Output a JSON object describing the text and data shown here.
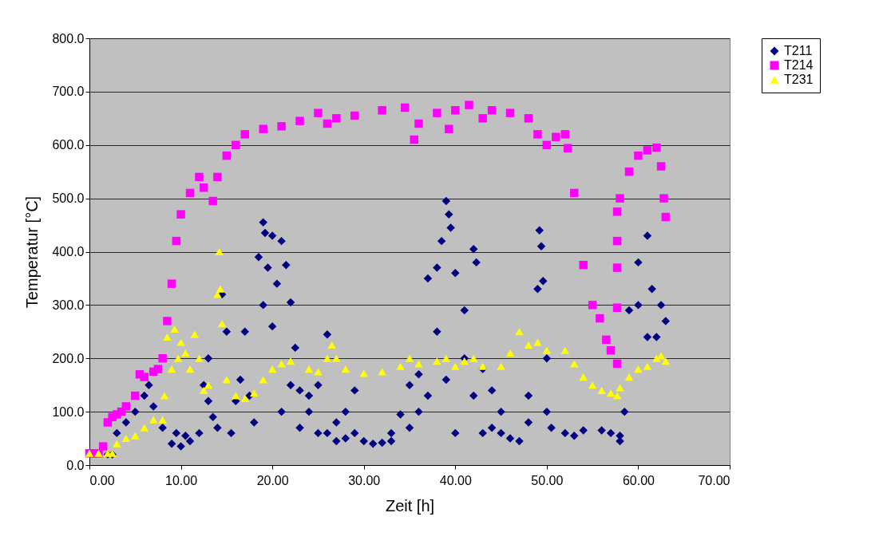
{
  "chart_data": {
    "type": "scatter",
    "xlabel": "Zeit [h]",
    "ylabel": "Temperatur [°C]",
    "xlim": [
      0,
      70
    ],
    "xticks": [
      {
        "value": 0,
        "label": "0.00"
      },
      {
        "value": 10,
        "label": "10.00"
      },
      {
        "value": 20,
        "label": "20.00"
      },
      {
        "value": 30,
        "label": "30.00"
      },
      {
        "value": 40,
        "label": "40.00"
      },
      {
        "value": 50,
        "label": "50.00"
      },
      {
        "value": 60,
        "label": "60.00"
      },
      {
        "value": 70,
        "label": "70.00"
      }
    ],
    "ylim": [
      0,
      800
    ],
    "yticks": [
      {
        "value": 0,
        "label": "0.0"
      },
      {
        "value": 100,
        "label": "100.0"
      },
      {
        "value": 200,
        "label": "200.0"
      },
      {
        "value": 300,
        "label": "300.0"
      },
      {
        "value": 400,
        "label": "400.0"
      },
      {
        "value": 500,
        "label": "500.0"
      },
      {
        "value": 600,
        "label": "600.0"
      },
      {
        "value": 700,
        "label": "700.0"
      },
      {
        "value": 800,
        "label": "800.0"
      }
    ],
    "grid": "y",
    "legend": "right",
    "series": [
      {
        "name": "T211",
        "color": "#000080",
        "marker": "diamond",
        "x": [
          2,
          2.5,
          3,
          4,
          5,
          6,
          6.5,
          7,
          8,
          9,
          9.5,
          10,
          10.5,
          11,
          12,
          12.5,
          13,
          13,
          13.5,
          14,
          14.5,
          15,
          15.5,
          16,
          16.5,
          17,
          17.5,
          18,
          18.5,
          19,
          19,
          19.2,
          19.5,
          20,
          20,
          20.5,
          21,
          21,
          21.5,
          22,
          22,
          22.5,
          23,
          23,
          24,
          24,
          25,
          25,
          26,
          26,
          27,
          27,
          28,
          28,
          29,
          29,
          30,
          31,
          32,
          33,
          33,
          34,
          35,
          35,
          36,
          36,
          37,
          37,
          38,
          38,
          38.5,
          39,
          39,
          39.3,
          39.5,
          40,
          40,
          41,
          41,
          42,
          42,
          42.3,
          43,
          43,
          44,
          44,
          45,
          45,
          46,
          47,
          48,
          48,
          49,
          49.2,
          49.4,
          49.6,
          50,
          50,
          50.5,
          52,
          53,
          54,
          56,
          57,
          58,
          58,
          58.5,
          59,
          60,
          60,
          61,
          61,
          61.5,
          62,
          62.5,
          63
        ],
        "values": [
          20,
          20,
          60,
          80,
          100,
          130,
          150,
          110,
          70,
          40,
          60,
          35,
          55,
          45,
          60,
          150,
          200,
          120,
          90,
          70,
          320,
          250,
          60,
          120,
          160,
          250,
          130,
          80,
          390,
          455,
          300,
          435,
          370,
          430,
          260,
          340,
          420,
          100,
          375,
          305,
          150,
          220,
          140,
          70,
          100,
          130,
          60,
          150,
          245,
          60,
          80,
          45,
          50,
          100,
          140,
          60,
          45,
          40,
          42,
          60,
          45,
          95,
          150,
          70,
          100,
          170,
          350,
          130,
          370,
          250,
          420,
          495,
          160,
          470,
          445,
          360,
          60,
          290,
          200,
          405,
          130,
          380,
          60,
          180,
          70,
          140,
          100,
          60,
          50,
          45,
          80,
          130,
          330,
          440,
          410,
          345,
          200,
          100,
          70,
          60,
          55,
          65,
          65,
          60,
          45,
          55,
          100,
          290,
          380,
          300,
          430,
          240,
          330,
          240,
          300,
          270
        ]
      },
      {
        "name": "T214",
        "color": "#ff00ff",
        "marker": "square",
        "x": [
          0,
          0.5,
          1,
          1.5,
          2,
          2.5,
          3,
          3.5,
          4,
          5,
          5.5,
          6,
          7,
          7.5,
          8,
          8.5,
          9,
          9.5,
          10,
          11,
          12,
          12.5,
          13.5,
          14,
          15,
          16,
          17,
          19,
          21,
          23,
          25,
          26,
          27,
          29,
          32,
          34.5,
          35.5,
          36,
          38,
          39.3,
          40,
          41.5,
          43,
          44,
          46,
          48,
          49,
          50,
          51,
          52,
          52.3,
          53,
          54,
          55,
          55.8,
          56.5,
          57,
          57.7,
          57.7,
          57.7,
          57.7,
          57.7,
          58,
          59,
          60,
          61,
          62,
          62.5,
          62.8,
          63
        ],
        "values": [
          22,
          22,
          22,
          35,
          80,
          90,
          95,
          100,
          110,
          130,
          170,
          165,
          175,
          180,
          200,
          270,
          340,
          420,
          470,
          510,
          540,
          520,
          495,
          540,
          580,
          600,
          620,
          630,
          635,
          645,
          660,
          640,
          650,
          655,
          665,
          670,
          610,
          640,
          660,
          630,
          665,
          675,
          650,
          665,
          660,
          650,
          620,
          600,
          615,
          620,
          594,
          510,
          375,
          300,
          275,
          235,
          215,
          190,
          295,
          370,
          420,
          475,
          500,
          550,
          580,
          590,
          595,
          560,
          500,
          465
        ]
      },
      {
        "name": "T231",
        "color": "#ffff00",
        "marker": "triangle",
        "x": [
          0,
          1,
          2,
          2.5,
          3,
          4,
          5,
          6,
          7,
          8,
          8.2,
          8.5,
          9,
          9.3,
          9.7,
          10,
          10.5,
          11,
          11.5,
          12,
          12.5,
          13,
          14,
          14.2,
          14.3,
          14.5,
          15,
          16,
          17,
          18,
          19,
          20,
          21,
          22,
          24,
          25,
          26,
          26.5,
          27,
          28,
          30,
          32,
          34,
          35,
          36,
          38,
          39,
          40,
          41,
          42,
          43,
          45,
          46,
          47,
          48,
          49,
          50,
          52,
          53,
          54,
          55,
          56,
          57,
          57.7,
          58,
          59,
          60,
          61,
          62,
          62.5,
          63
        ],
        "values": [
          22,
          22,
          22,
          22,
          40,
          50,
          55,
          70,
          85,
          85,
          130,
          240,
          180,
          255,
          200,
          230,
          210,
          180,
          245,
          200,
          140,
          150,
          320,
          400,
          330,
          265,
          160,
          130,
          125,
          135,
          160,
          180,
          190,
          195,
          180,
          175,
          200,
          225,
          200,
          180,
          172,
          175,
          185,
          200,
          190,
          195,
          200,
          185,
          195,
          200,
          185,
          185,
          210,
          250,
          225,
          230,
          215,
          215,
          190,
          165,
          150,
          140,
          135,
          130,
          145,
          165,
          180,
          185,
          200,
          205,
          195
        ]
      }
    ]
  }
}
